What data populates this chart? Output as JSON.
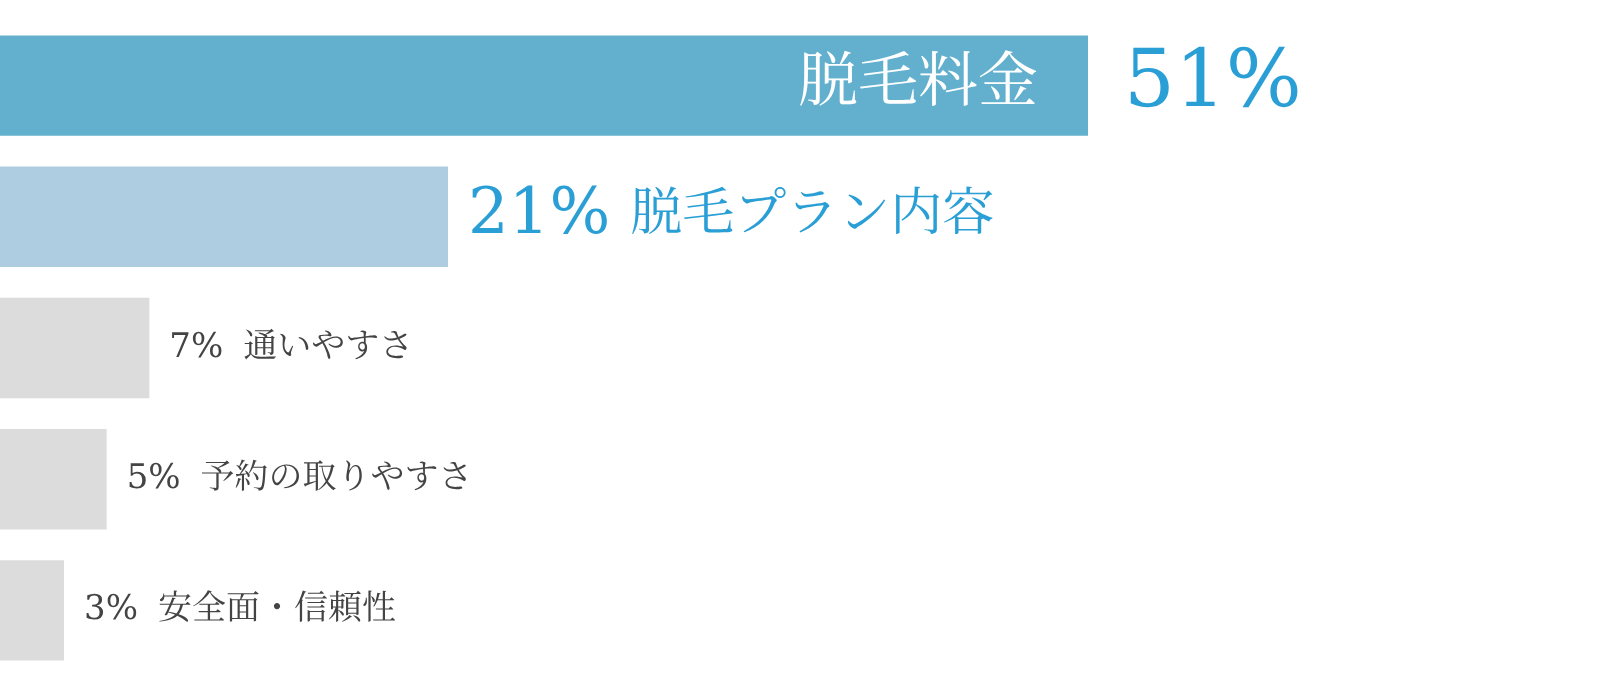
{
  "chart_data": {
    "type": "bar",
    "orientation": "horizontal",
    "categories": [
      "脱毛料金",
      "脱毛プラン内容",
      "通いやすさ",
      "予約の取りやすさ",
      "安全面・信頼性"
    ],
    "values": [
      51,
      21,
      7,
      5,
      3
    ],
    "value_labels": [
      "51%",
      "21%",
      "7%",
      "5%",
      "3%"
    ],
    "colors": [
      "#62b0cd",
      "#aecde0",
      "#dcdcdc",
      "#dcdcdc",
      "#dcdcdc"
    ],
    "tick_labels": false,
    "legend": false
  }
}
